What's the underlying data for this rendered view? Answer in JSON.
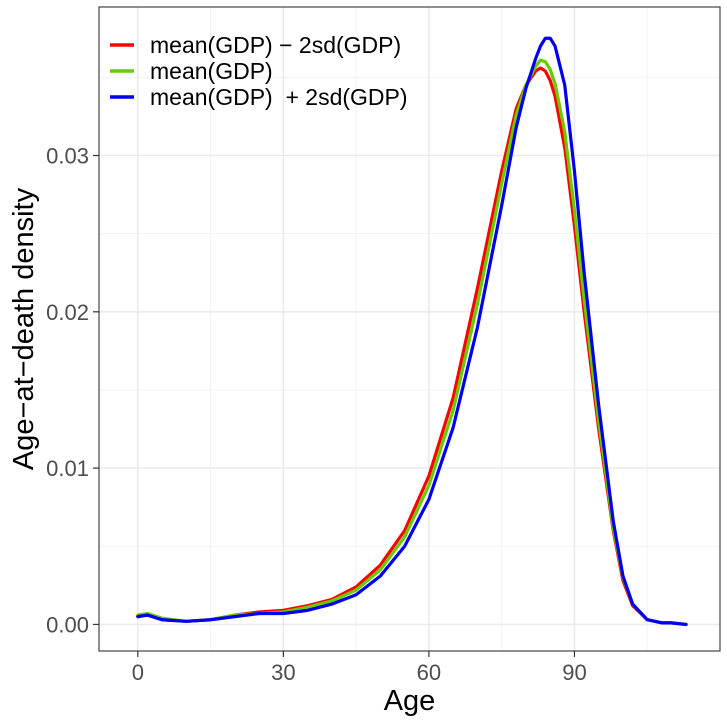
{
  "chart_data": {
    "type": "line",
    "title": "",
    "xlabel": "Age",
    "ylabel": "Age−at−death density",
    "xlim": [
      -8,
      120
    ],
    "ylim": [
      -0.0017,
      0.0395
    ],
    "x_ticks": [
      0,
      30,
      60,
      90
    ],
    "x_tick_labels": [
      "0",
      "30",
      "60",
      "90"
    ],
    "y_ticks": [
      0,
      0.01,
      0.02,
      0.03
    ],
    "y_tick_labels": [
      "0.00",
      "0.01",
      "0.02",
      "0.03"
    ],
    "x_minor_grid": [
      15,
      45,
      75,
      105
    ],
    "y_minor_grid": [
      0.005,
      0.015,
      0.025,
      0.035
    ],
    "grid": true,
    "legend_position": "top-left",
    "series": [
      {
        "name": "mean(GDP) − 2sd(GDP)",
        "color": "#ff0000",
        "x": [
          0,
          2,
          5,
          10,
          15,
          20,
          25,
          30,
          35,
          40,
          45,
          50,
          55,
          60,
          65,
          70,
          75,
          78,
          80,
          82,
          83,
          84,
          85,
          86,
          88,
          90,
          92,
          95,
          98,
          100,
          102,
          105,
          108,
          110,
          113
        ],
        "y": [
          0.0005,
          0.0006,
          0.0003,
          0.0002,
          0.0003,
          0.0006,
          0.0008,
          0.0009,
          0.0012,
          0.0016,
          0.0024,
          0.0038,
          0.006,
          0.0095,
          0.0145,
          0.0215,
          0.029,
          0.033,
          0.0345,
          0.0354,
          0.0356,
          0.0354,
          0.0348,
          0.0338,
          0.0305,
          0.0255,
          0.02,
          0.0125,
          0.006,
          0.0028,
          0.0012,
          0.0003,
          0.0001,
          0.0001,
          0.0
        ]
      },
      {
        "name": "mean(GDP)",
        "color": "#66cc00",
        "x": [
          0,
          2,
          5,
          10,
          15,
          20,
          25,
          30,
          35,
          40,
          45,
          50,
          55,
          60,
          65,
          70,
          75,
          78,
          80,
          82,
          83,
          84,
          85,
          86,
          88,
          90,
          92,
          95,
          98,
          100,
          102,
          105,
          108,
          110,
          113
        ],
        "y": [
          0.0006,
          0.0007,
          0.0004,
          0.0002,
          0.0003,
          0.0006,
          0.0007,
          0.0008,
          0.0011,
          0.0015,
          0.0022,
          0.0035,
          0.0056,
          0.0089,
          0.0137,
          0.0205,
          0.0282,
          0.0326,
          0.0345,
          0.0357,
          0.0361,
          0.036,
          0.0355,
          0.0346,
          0.0315,
          0.0265,
          0.0208,
          0.013,
          0.0062,
          0.003,
          0.0013,
          0.0003,
          0.0001,
          0.0001,
          0.0
        ]
      },
      {
        "name": "mean(GDP)  + 2sd(GDP)",
        "color": "#0000ee",
        "x": [
          0,
          2,
          5,
          10,
          15,
          20,
          25,
          30,
          35,
          40,
          45,
          50,
          55,
          60,
          65,
          70,
          75,
          78,
          80,
          82,
          83,
          84,
          85,
          86,
          88,
          90,
          92,
          95,
          98,
          100,
          102,
          105,
          108,
          110,
          113
        ],
        "y": [
          0.0005,
          0.0006,
          0.0003,
          0.0002,
          0.0003,
          0.0005,
          0.0007,
          0.0007,
          0.0009,
          0.0013,
          0.0019,
          0.0031,
          0.005,
          0.008,
          0.0126,
          0.019,
          0.0268,
          0.0318,
          0.0343,
          0.0362,
          0.037,
          0.0375,
          0.0375,
          0.037,
          0.0345,
          0.029,
          0.0225,
          0.014,
          0.0066,
          0.0031,
          0.0013,
          0.0003,
          0.0001,
          0.0001,
          0.0
        ]
      }
    ]
  }
}
